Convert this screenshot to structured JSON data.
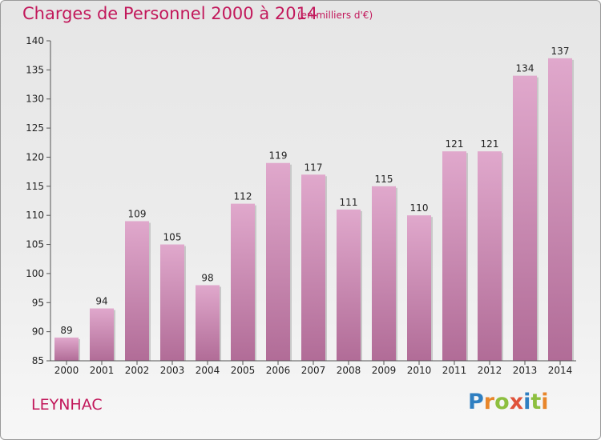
{
  "chart_data": {
    "type": "bar",
    "title": "Charges de Personnel 2000 à 2014",
    "subtitle": "(en milliers d'€)",
    "categories": [
      "2000",
      "2001",
      "2002",
      "2003",
      "2004",
      "2005",
      "2006",
      "2007",
      "2008",
      "2009",
      "2010",
      "2011",
      "2012",
      "2013",
      "2014"
    ],
    "values": [
      89,
      94,
      109,
      105,
      98,
      112,
      119,
      117,
      111,
      115,
      110,
      121,
      121,
      134,
      137
    ],
    "ylim": [
      85,
      140
    ],
    "yticks": [
      85,
      90,
      95,
      100,
      105,
      110,
      115,
      120,
      125,
      130,
      135,
      140
    ],
    "grid": false,
    "bar_color_top": "#e0a8cc",
    "bar_color_bottom": "#b16c97"
  },
  "footer": {
    "commune": "LEYNHAC",
    "logo_letters": [
      {
        "ch": "P",
        "color": "#2f7fc1"
      },
      {
        "ch": "r",
        "color": "#e8862a"
      },
      {
        "ch": "o",
        "color": "#8dbf3f"
      },
      {
        "ch": "x",
        "color": "#e0533b"
      },
      {
        "ch": "i",
        "color": "#2f7fc1"
      },
      {
        "ch": "t",
        "color": "#8dbf3f"
      },
      {
        "ch": "i",
        "color": "#e8862a"
      }
    ]
  }
}
